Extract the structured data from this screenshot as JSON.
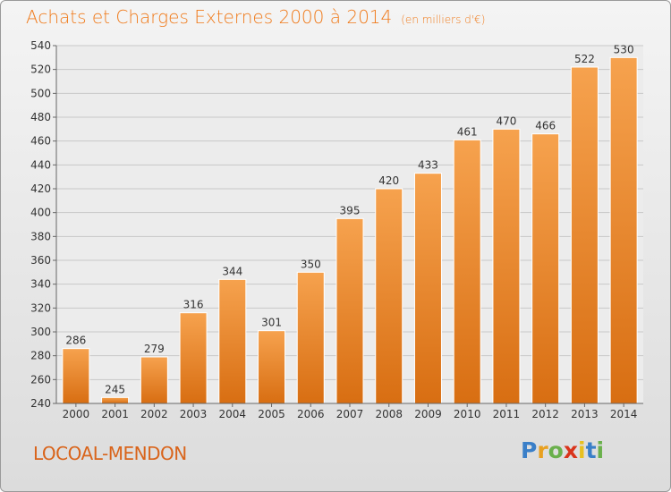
{
  "title": "Achats et Charges Externes 2000 à 2014",
  "unit": "(en milliers d'€)",
  "place": "LOCOAL-MENDON",
  "logo": {
    "letters": [
      "P",
      "r",
      "o",
      "x",
      "i",
      "t",
      "i"
    ],
    "colors": [
      "#3a7fc8",
      "#e8a020",
      "#6ab04c",
      "#d9341b",
      "#e8c020",
      "#3a7fc8",
      "#6ab04c"
    ]
  },
  "colors": {
    "bar": "#f08a2a",
    "title": "#f07a1a"
  },
  "chart_data": {
    "type": "bar",
    "categories": [
      "2000",
      "2001",
      "2002",
      "2003",
      "2004",
      "2005",
      "2006",
      "2007",
      "2008",
      "2009",
      "2010",
      "2011",
      "2012",
      "2013",
      "2014"
    ],
    "values": [
      286,
      245,
      279,
      316,
      344,
      301,
      350,
      395,
      420,
      433,
      461,
      470,
      466,
      522,
      530
    ],
    "ylim": [
      240,
      540
    ],
    "yticks": [
      240,
      260,
      280,
      300,
      320,
      340,
      360,
      380,
      400,
      420,
      440,
      460,
      480,
      500,
      520,
      540
    ],
    "grid": true
  }
}
